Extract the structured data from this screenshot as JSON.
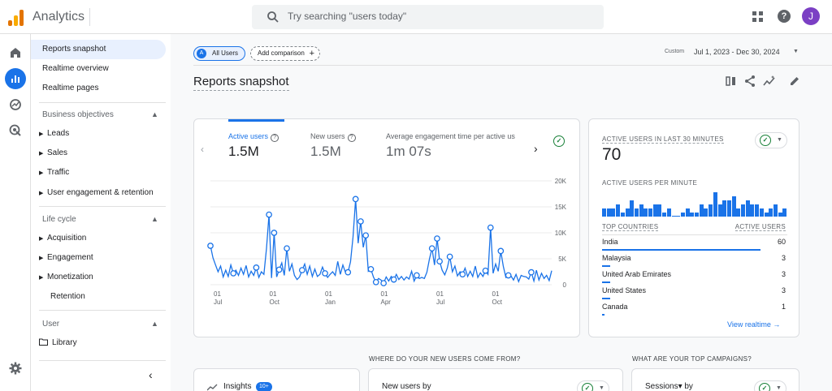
{
  "app": {
    "title": "Analytics",
    "avatar_letter": "J"
  },
  "search": {
    "placeholder": "Try searching \"users today\""
  },
  "nav": {
    "top_items": [
      "Reports snapshot",
      "Realtime overview",
      "Realtime pages"
    ],
    "section_business": "Business objectives",
    "business_items": [
      "Leads",
      "Sales",
      "Traffic",
      "User engagement & retention"
    ],
    "section_lifecycle": "Life cycle",
    "lifecycle_items": [
      "Acquisition",
      "Engagement",
      "Monetization",
      "Retention"
    ],
    "section_user": "User",
    "user_items": [
      "Library"
    ]
  },
  "header": {
    "comparison_chip": "All Users",
    "comparison_letter": "A",
    "add_comparison": "Add comparison",
    "date_label": "Custom",
    "date_range": "Jul 1, 2023 - Dec 30, 2024",
    "page_title": "Reports snapshot"
  },
  "metrics": [
    {
      "label": "Active users",
      "value": "1.5M"
    },
    {
      "label": "New users",
      "value": "1.5M"
    },
    {
      "label": "Average engagement time per active us",
      "value": "1m 07s"
    }
  ],
  "chart_data": {
    "type": "line",
    "series": [
      {
        "values": [
          7500,
          5200,
          3800,
          2500,
          3600,
          1500,
          2800,
          1600,
          3800,
          2200,
          2800,
          1800,
          3200,
          2000,
          3700,
          1500,
          2600,
          1800,
          3300,
          1400,
          2500,
          2000,
          7000,
          13500,
          1300,
          10000,
          1500,
          2900,
          4200,
          1800,
          7000,
          2600,
          4000,
          1800,
          1000,
          1500,
          2800,
          4000,
          2000,
          3600,
          1600,
          3000,
          1600,
          2000,
          3400,
          2200,
          1400,
          2000,
          2500,
          1800,
          4500,
          2000,
          3800,
          2400,
          2400,
          4400,
          9200,
          16500,
          8000,
          12200,
          7200,
          9500,
          2600,
          3000,
          1500,
          500,
          1200,
          900,
          300,
          1500,
          700,
          1600,
          1000,
          2000,
          1000,
          1600,
          900,
          1500,
          1100,
          2600,
          700,
          1800,
          1200,
          1400,
          1200,
          2400,
          5000,
          7000,
          3800,
          8900,
          4500,
          2800,
          1900,
          3200,
          5400,
          2500,
          3600,
          1700,
          2500,
          2000,
          3200,
          1600,
          2600,
          1600,
          3600,
          1400,
          2300,
          1600,
          2700,
          2000,
          11000,
          2200,
          4000,
          2600,
          6500,
          3600,
          1400,
          1800,
          1700,
          900,
          2000,
          600,
          1800,
          1600,
          1500,
          1100,
          2400,
          700,
          2800,
          900,
          2200,
          1200,
          1800,
          800,
          2700
        ]
      }
    ],
    "x_ticks": [
      {
        "day": "01",
        "month": "Jul"
      },
      {
        "day": "01",
        "month": "Oct"
      },
      {
        "day": "01",
        "month": "Jan"
      },
      {
        "day": "01",
        "month": "Apr"
      },
      {
        "day": "01",
        "month": "Jul"
      },
      {
        "day": "01",
        "month": "Oct"
      }
    ],
    "y_ticks": [
      "20K",
      "15K",
      "10K",
      "5K",
      "0"
    ],
    "ylim": [
      0,
      20000
    ],
    "grid": true,
    "line_color": "#1a73e8"
  },
  "realtime": {
    "title": "ACTIVE USERS IN LAST 30 MINUTES",
    "value": "70",
    "per_minute_label": "ACTIVE USERS PER MINUTE",
    "per_minute": [
      2,
      2,
      2,
      3,
      1,
      2,
      4,
      2,
      3,
      2,
      2,
      3,
      3,
      1,
      2,
      0,
      0,
      1,
      2,
      1,
      1,
      3,
      2,
      3,
      6,
      3,
      4,
      4,
      5,
      2,
      3,
      4,
      3,
      3,
      2,
      1,
      2,
      3,
      1,
      2
    ],
    "col_country": "TOP COUNTRIES",
    "col_users": "ACTIVE USERS",
    "countries": [
      {
        "name": "India",
        "count": "60",
        "share": 0.857
      },
      {
        "name": "Malaysia",
        "count": "3",
        "share": 0.043
      },
      {
        "name": "United Arab Emirates",
        "count": "3",
        "share": 0.043
      },
      {
        "name": "United States",
        "count": "3",
        "share": 0.043
      },
      {
        "name": "Canada",
        "count": "1",
        "share": 0.014
      }
    ],
    "link": "View realtime"
  },
  "bottom": {
    "q_new_users": "WHERE DO YOUR NEW USERS COME FROM?",
    "q_campaigns": "WHAT ARE YOUR TOP CAMPAIGNS?",
    "insights_label": "Insights",
    "insights_badge": "10+",
    "new_users_by": "New users by",
    "sessions_by": "Sessions▾ by"
  },
  "colors": {
    "accent": "#1a73e8",
    "success": "#188038",
    "avatar": "#7b3fc4"
  }
}
